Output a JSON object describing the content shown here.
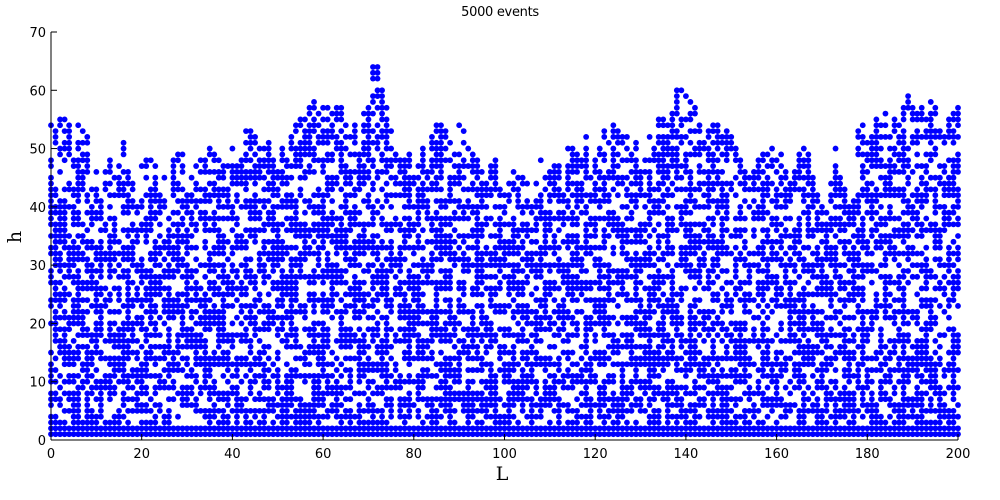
{
  "chart_data": {
    "type": "scatter",
    "title": "5000 events",
    "xlabel": "L",
    "ylabel": "h",
    "xlim": [
      0,
      200
    ],
    "ylim": [
      0,
      70
    ],
    "xticks": [
      "0",
      "20",
      "40",
      "60",
      "80",
      "100",
      "120",
      "140",
      "160",
      "180",
      "200"
    ],
    "yticks": [
      "0",
      "10",
      "20",
      "30",
      "40",
      "50",
      "60",
      "70"
    ],
    "grid": false,
    "marker_color": "#0000ff",
    "points": [],
    "column_tops": [
      54,
      53,
      55,
      55,
      54,
      48,
      54,
      53,
      52,
      43,
      46,
      41,
      46,
      48,
      45,
      47,
      51,
      46,
      44,
      40,
      47,
      48,
      48,
      47,
      42,
      45,
      38,
      48,
      49,
      49,
      42,
      45,
      47,
      48,
      48,
      50,
      49,
      48,
      47,
      47,
      50,
      47,
      48,
      53,
      53,
      52,
      50,
      50,
      51,
      48,
      46,
      50,
      48,
      52,
      54,
      55,
      55,
      57,
      58,
      56,
      57,
      57,
      56,
      57,
      57,
      54,
      52,
      54,
      49,
      56,
      57,
      64,
      64,
      60,
      57,
      53,
      49,
      48,
      48,
      49,
      45,
      47,
      50,
      46,
      52,
      54,
      54,
      53,
      51,
      49,
      54,
      53,
      50,
      49,
      48,
      46,
      44,
      47,
      48,
      43,
      42,
      44,
      46,
      45,
      45,
      44,
      40,
      44,
      48,
      45,
      46,
      47,
      47,
      42,
      50,
      50,
      49,
      48,
      52,
      45,
      48,
      50,
      53,
      51,
      54,
      53,
      52,
      52,
      49,
      51,
      46,
      48,
      52,
      50,
      55,
      55,
      54,
      56,
      60,
      60,
      59,
      58,
      57,
      54,
      51,
      53,
      54,
      54,
      52,
      53,
      52,
      50,
      48,
      46,
      45,
      46,
      48,
      49,
      49,
      50,
      48,
      49,
      46,
      44,
      46,
      49,
      50,
      49,
      45,
      42,
      40,
      39,
      44,
      50,
      45,
      43,
      40,
      41,
      53,
      54,
      51,
      52,
      55,
      54,
      56,
      52,
      55,
      54,
      57,
      59,
      57,
      56,
      57,
      55,
      58,
      57,
      53,
      52,
      55,
      56,
      57
    ]
  }
}
